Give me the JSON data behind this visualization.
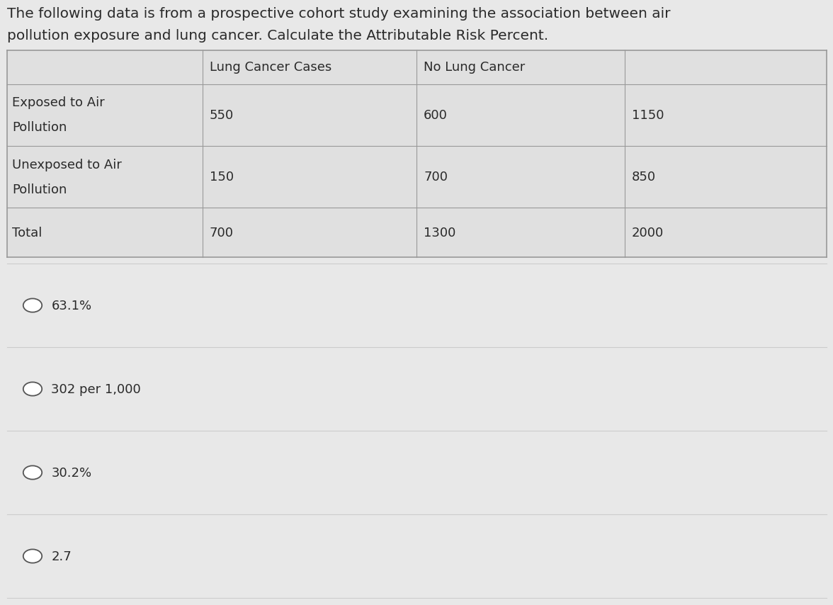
{
  "title_line1": "The following data is from a prospective cohort study examining the association between air",
  "title_line2": "pollution exposure and lung cancer. Calculate the Attributable Risk Percent.",
  "col_headers": [
    "",
    "Lung Cancer Cases",
    "No Lung Cancer",
    ""
  ],
  "row1_label": [
    "Exposed to Air",
    "Pollution"
  ],
  "row2_label": [
    "Unexposed to Air",
    "Pollution"
  ],
  "row3_label": [
    "Total"
  ],
  "table_data": [
    [
      "550",
      "600",
      "1150"
    ],
    [
      "150",
      "700",
      "850"
    ],
    [
      "700",
      "1300",
      "2000"
    ]
  ],
  "options": [
    "63.1%",
    "302 per 1,000",
    "30.2%",
    "2.7"
  ],
  "bg_color": "#e8e8e8",
  "table_bg": "#e0e0e0",
  "table_line_color": "#999999",
  "option_line_color": "#cccccc",
  "text_color": "#2a2a2a",
  "font_size_title": 14.5,
  "font_size_table": 13,
  "font_size_options": 13
}
